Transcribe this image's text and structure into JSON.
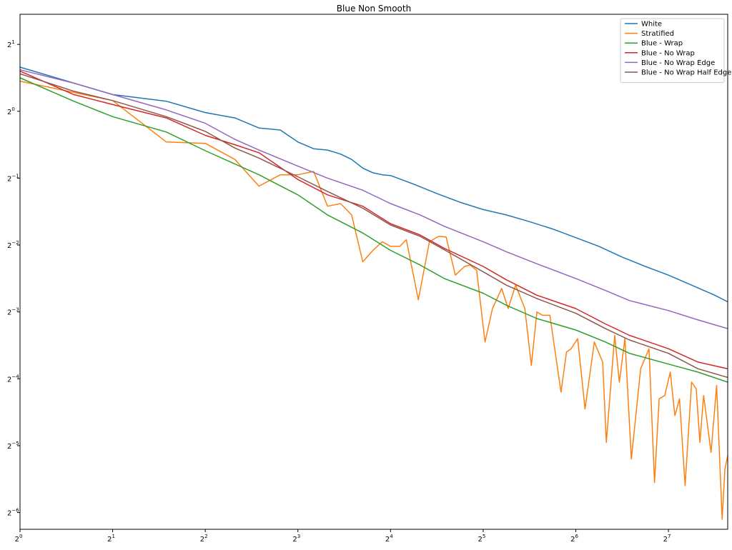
{
  "chart_data": {
    "type": "line",
    "title": "Blue Non Smooth",
    "xlabel": "",
    "ylabel": "",
    "xscale": "log2",
    "yscale": "log2",
    "xlim_log2": [
      0,
      7.64
    ],
    "ylim_log2": [
      -6.25,
      1.45
    ],
    "xticks": [
      {
        "exp": 0,
        "label": "0"
      },
      {
        "exp": 1,
        "label": "1"
      },
      {
        "exp": 2,
        "label": "2"
      },
      {
        "exp": 3,
        "label": "3"
      },
      {
        "exp": 4,
        "label": "4"
      },
      {
        "exp": 5,
        "label": "5"
      },
      {
        "exp": 6,
        "label": "6"
      },
      {
        "exp": 7,
        "label": "7"
      }
    ],
    "yticks": [
      {
        "exp": 1,
        "label": "1"
      },
      {
        "exp": 0,
        "label": "0"
      },
      {
        "exp": -1,
        "label": "−1"
      },
      {
        "exp": -2,
        "label": "−2"
      },
      {
        "exp": -3,
        "label": "−3"
      },
      {
        "exp": -4,
        "label": "−4"
      },
      {
        "exp": -5,
        "label": "−5"
      },
      {
        "exp": -6,
        "label": "−6"
      }
    ],
    "legend_position": "top-right",
    "grid": false,
    "series": [
      {
        "name": "White",
        "color": "#1f77b4",
        "log2x": [
          0,
          1,
          1.58,
          2,
          2.32,
          2.58,
          2.81,
          3,
          3.17,
          3.32,
          3.46,
          3.58,
          3.7,
          3.81,
          3.91,
          4,
          4.25,
          4.5,
          4.75,
          5,
          5.25,
          5.5,
          5.75,
          6,
          6.25,
          6.5,
          6.75,
          7,
          7.25,
          7.5,
          7.64
        ],
        "log2y": [
          0.66,
          0.25,
          0.15,
          -0.02,
          -0.1,
          -0.25,
          -0.28,
          -0.46,
          -0.56,
          -0.58,
          -0.64,
          -0.72,
          -0.85,
          -0.92,
          -0.95,
          -0.96,
          -1.09,
          -1.23,
          -1.36,
          -1.47,
          -1.55,
          -1.65,
          -1.76,
          -1.89,
          -2.02,
          -2.18,
          -2.32,
          -2.45,
          -2.6,
          -2.75,
          -2.85
        ]
      },
      {
        "name": "Stratified",
        "color": "#ff7f0e",
        "log2x": [
          0,
          1,
          1.58,
          2,
          2.32,
          2.58,
          2.81,
          3,
          3.17,
          3.32,
          3.46,
          3.58,
          3.7,
          3.81,
          3.91,
          4,
          4.1,
          4.17,
          4.3,
          4.42,
          4.52,
          4.6,
          4.7,
          4.8,
          4.86,
          4.93,
          5.02,
          5.1,
          5.2,
          5.27,
          5.35,
          5.45,
          5.52,
          5.58,
          5.64,
          5.72,
          5.84,
          5.9,
          5.95,
          6.02,
          6.1,
          6.2,
          6.29,
          6.33,
          6.42,
          6.47,
          6.53,
          6.6,
          6.7,
          6.79,
          6.85,
          6.9,
          6.96,
          7.02,
          7.07,
          7.12,
          7.18,
          7.25,
          7.3,
          7.34,
          7.38,
          7.46,
          7.52,
          7.58,
          7.61,
          7.64
        ],
        "log2y": [
          0.45,
          0.16,
          -0.46,
          -0.48,
          -0.72,
          -1.12,
          -0.95,
          -0.95,
          -0.9,
          -1.42,
          -1.38,
          -1.55,
          -2.25,
          -2.08,
          -1.95,
          -2.02,
          -2.02,
          -1.92,
          -2.82,
          -1.95,
          -1.87,
          -1.88,
          -2.45,
          -2.32,
          -2.3,
          -2.38,
          -3.45,
          -2.95,
          -2.65,
          -2.95,
          -2.6,
          -2.95,
          -3.8,
          -3.0,
          -3.05,
          -3.05,
          -4.2,
          -3.6,
          -3.55,
          -3.4,
          -4.45,
          -3.45,
          -3.75,
          -4.95,
          -3.35,
          -4.05,
          -3.4,
          -5.2,
          -3.85,
          -3.55,
          -5.55,
          -4.3,
          -4.25,
          -3.9,
          -4.55,
          -4.3,
          -5.6,
          -4.05,
          -4.15,
          -4.95,
          -4.25,
          -5.1,
          -4.1,
          -6.1,
          -5.35,
          -5.15
        ]
      },
      {
        "name": "Blue - Wrap",
        "color": "#2ca02c",
        "log2y": [
          0.5,
          0.15,
          -0.08,
          -0.31,
          -0.59,
          -0.95,
          -1.25,
          -1.55,
          -1.82,
          -2.08,
          -2.3,
          -2.5,
          -2.72,
          -2.9,
          -3.1,
          -3.27,
          -3.45,
          -3.62,
          -3.78,
          -3.9,
          -4.05
        ],
        "log2x": [
          0,
          0.58,
          1,
          1.58,
          2,
          2.58,
          3,
          3.32,
          3.7,
          4,
          4.32,
          4.58,
          5,
          5.25,
          5.58,
          6,
          6.32,
          6.58,
          7,
          7.32,
          7.64
        ]
      },
      {
        "name": "Blue - No Wrap",
        "color": "#d62728",
        "log2x": [
          0,
          0.58,
          1,
          1.58,
          2,
          2.32,
          2.58,
          3,
          3.32,
          3.7,
          4,
          4.32,
          4.58,
          5,
          5.25,
          5.58,
          6,
          6.32,
          6.58,
          7,
          7.32,
          7.64
        ],
        "log2y": [
          0.6,
          0.25,
          0.1,
          -0.1,
          -0.36,
          -0.5,
          -0.62,
          -1.02,
          -1.25,
          -1.42,
          -1.68,
          -1.85,
          -2.05,
          -2.32,
          -2.52,
          -2.75,
          -2.95,
          -3.18,
          -3.35,
          -3.55,
          -3.75,
          -3.85
        ]
      },
      {
        "name": "Blue - No Wrap Edge",
        "color": "#9467bd",
        "log2x": [
          0,
          0.58,
          1,
          1.58,
          2,
          2.32,
          2.58,
          3,
          3.32,
          3.7,
          4,
          4.32,
          4.58,
          5,
          5.25,
          5.58,
          6,
          6.32,
          6.58,
          7,
          7.32,
          7.64
        ],
        "log2y": [
          0.62,
          0.42,
          0.25,
          0.02,
          -0.18,
          -0.42,
          -0.58,
          -0.82,
          -1.0,
          -1.18,
          -1.38,
          -1.55,
          -1.72,
          -1.95,
          -2.1,
          -2.28,
          -2.5,
          -2.68,
          -2.83,
          -2.98,
          -3.12,
          -3.25
        ]
      },
      {
        "name": "Blue - No Wrap Half Edge",
        "color": "#8c564b",
        "log2x": [
          0,
          0.58,
          1,
          1.58,
          2,
          2.32,
          2.58,
          3,
          3.32,
          3.7,
          4,
          4.32,
          4.58,
          5,
          5.25,
          5.58,
          6,
          6.32,
          6.58,
          7,
          7.32,
          7.64
        ],
        "log2y": [
          0.56,
          0.3,
          0.16,
          -0.08,
          -0.3,
          -0.55,
          -0.7,
          -0.98,
          -1.2,
          -1.45,
          -1.7,
          -1.87,
          -2.07,
          -2.4,
          -2.6,
          -2.8,
          -3.02,
          -3.25,
          -3.42,
          -3.62,
          -3.85,
          -3.98
        ]
      }
    ]
  }
}
